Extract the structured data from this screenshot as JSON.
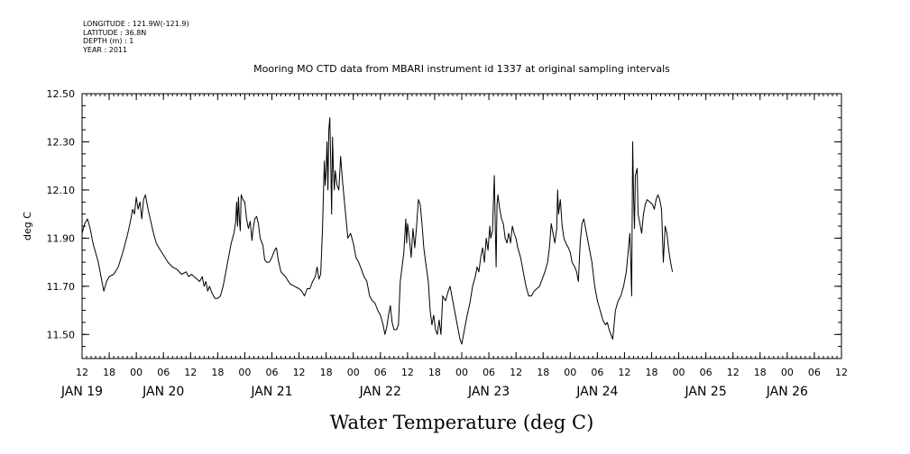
{
  "header": {
    "longitude": "LONGITUDE : 121.9W(-121.9)",
    "latitude": "LATITUDE : 36.8N",
    "depth": "DEPTH (m) : 1",
    "year": "YEAR : 2011"
  },
  "chart_data": {
    "type": "line",
    "title": "Mooring MO CTD data from MBARI instrument id 1337 at original sampling intervals",
    "xlabel": "Water Temperature (deg C)",
    "ylabel": "deg C",
    "x_units": "hours since JAN 19 00:00 (2011)",
    "xlim": [
      12,
      180
    ],
    "ylim": [
      11.4,
      12.5
    ],
    "yticks": [
      11.5,
      11.7,
      11.9,
      12.1,
      12.3,
      12.5
    ],
    "ytick_labels": [
      "11.50",
      "11.70",
      "11.90",
      "12.10",
      "12.30",
      "12.50"
    ],
    "hour_ticks": [
      12,
      18,
      24,
      30,
      36,
      42,
      48,
      54,
      60,
      66,
      72,
      78,
      84,
      90,
      96,
      102,
      108,
      114,
      120,
      126,
      132,
      138,
      144,
      150,
      156,
      162,
      168,
      174,
      180
    ],
    "hour_tick_labels": [
      "12",
      "18",
      "00",
      "06",
      "12",
      "18",
      "00",
      "06",
      "12",
      "18",
      "00",
      "06",
      "12",
      "18",
      "00",
      "06",
      "12",
      "18",
      "00",
      "06",
      "12",
      "18",
      "00",
      "06",
      "12",
      "18",
      "00",
      "06",
      "12"
    ],
    "day_labels": [
      {
        "x": 12,
        "label": "JAN 19"
      },
      {
        "x": 30,
        "label": "JAN 20"
      },
      {
        "x": 54,
        "label": "JAN 21"
      },
      {
        "x": 78,
        "label": "JAN 22"
      },
      {
        "x": 102,
        "label": "JAN 23"
      },
      {
        "x": 126,
        "label": "JAN 24"
      },
      {
        "x": 150,
        "label": "JAN 25"
      },
      {
        "x": 168,
        "label": "JAN 26"
      }
    ],
    "grid": false,
    "series": [
      {
        "color": "#000000",
        "points": [
          [
            12.0,
            11.92
          ],
          [
            12.6,
            11.96
          ],
          [
            13.2,
            11.98
          ],
          [
            13.8,
            11.94
          ],
          [
            14.4,
            11.88
          ],
          [
            15.0,
            11.84
          ],
          [
            15.6,
            11.8
          ],
          [
            16.2,
            11.74
          ],
          [
            16.8,
            11.68
          ],
          [
            17.4,
            11.72
          ],
          [
            18.0,
            11.74
          ],
          [
            19.0,
            11.75
          ],
          [
            20.0,
            11.78
          ],
          [
            21.0,
            11.84
          ],
          [
            22.0,
            11.91
          ],
          [
            22.6,
            11.96
          ],
          [
            23.2,
            12.02
          ],
          [
            23.6,
            12.0
          ],
          [
            24.0,
            12.07
          ],
          [
            24.4,
            12.02
          ],
          [
            24.8,
            12.05
          ],
          [
            25.2,
            11.98
          ],
          [
            25.6,
            12.06
          ],
          [
            26.0,
            12.08
          ],
          [
            26.6,
            12.02
          ],
          [
            27.2,
            11.97
          ],
          [
            27.8,
            11.92
          ],
          [
            28.4,
            11.88
          ],
          [
            29.0,
            11.86
          ],
          [
            30.0,
            11.83
          ],
          [
            31.0,
            11.8
          ],
          [
            32.0,
            11.78
          ],
          [
            33.0,
            11.77
          ],
          [
            34.0,
            11.75
          ],
          [
            35.0,
            11.76
          ],
          [
            35.6,
            11.74
          ],
          [
            36.2,
            11.75
          ],
          [
            36.8,
            11.74
          ],
          [
            37.4,
            11.73
          ],
          [
            38.0,
            11.72
          ],
          [
            38.6,
            11.74
          ],
          [
            39.0,
            11.7
          ],
          [
            39.4,
            11.72
          ],
          [
            39.8,
            11.68
          ],
          [
            40.2,
            11.7
          ],
          [
            40.8,
            11.67
          ],
          [
            41.4,
            11.65
          ],
          [
            42.0,
            11.65
          ],
          [
            42.6,
            11.66
          ],
          [
            43.2,
            11.7
          ],
          [
            43.8,
            11.76
          ],
          [
            44.4,
            11.82
          ],
          [
            45.0,
            11.88
          ],
          [
            45.6,
            11.92
          ],
          [
            46.0,
            11.97
          ],
          [
            46.2,
            12.05
          ],
          [
            46.4,
            11.95
          ],
          [
            46.6,
            12.07
          ],
          [
            46.8,
            11.98
          ],
          [
            47.0,
            11.93
          ],
          [
            47.2,
            12.08
          ],
          [
            47.6,
            12.06
          ],
          [
            48.0,
            12.05
          ],
          [
            48.4,
            11.98
          ],
          [
            48.8,
            11.94
          ],
          [
            49.2,
            11.97
          ],
          [
            49.6,
            11.89
          ],
          [
            49.8,
            11.93
          ],
          [
            50.2,
            11.98
          ],
          [
            50.6,
            11.99
          ],
          [
            51.0,
            11.96
          ],
          [
            51.4,
            11.9
          ],
          [
            52.0,
            11.87
          ],
          [
            52.4,
            11.81
          ],
          [
            52.8,
            11.8
          ],
          [
            53.4,
            11.8
          ],
          [
            54.0,
            11.82
          ],
          [
            54.6,
            11.85
          ],
          [
            55.0,
            11.86
          ],
          [
            55.4,
            11.81
          ],
          [
            56.0,
            11.76
          ],
          [
            57.0,
            11.74
          ],
          [
            58.0,
            11.71
          ],
          [
            59.0,
            11.7
          ],
          [
            60.0,
            11.69
          ],
          [
            60.6,
            11.68
          ],
          [
            61.2,
            11.66
          ],
          [
            61.8,
            11.69
          ],
          [
            62.4,
            11.69
          ],
          [
            63.0,
            11.72
          ],
          [
            63.6,
            11.74
          ],
          [
            64.0,
            11.78
          ],
          [
            64.4,
            11.73
          ],
          [
            64.8,
            11.75
          ],
          [
            65.2,
            11.94
          ],
          [
            65.6,
            12.22
          ],
          [
            65.8,
            12.12
          ],
          [
            66.0,
            12.18
          ],
          [
            66.2,
            12.3
          ],
          [
            66.4,
            12.1
          ],
          [
            66.6,
            12.35
          ],
          [
            66.8,
            12.4
          ],
          [
            67.0,
            12.22
          ],
          [
            67.2,
            12.0
          ],
          [
            67.4,
            12.32
          ],
          [
            67.6,
            12.18
          ],
          [
            67.8,
            12.1
          ],
          [
            68.0,
            12.18
          ],
          [
            68.4,
            12.12
          ],
          [
            68.8,
            12.1
          ],
          [
            69.2,
            12.24
          ],
          [
            69.6,
            12.14
          ],
          [
            70.0,
            12.06
          ],
          [
            70.4,
            11.98
          ],
          [
            70.8,
            11.9
          ],
          [
            71.4,
            11.92
          ],
          [
            72.0,
            11.88
          ],
          [
            72.6,
            11.82
          ],
          [
            73.2,
            11.8
          ],
          [
            73.8,
            11.77
          ],
          [
            74.4,
            11.74
          ],
          [
            75.0,
            11.72
          ],
          [
            75.6,
            11.66
          ],
          [
            76.2,
            11.64
          ],
          [
            76.8,
            11.63
          ],
          [
            77.4,
            11.6
          ],
          [
            78.0,
            11.58
          ],
          [
            78.6,
            11.54
          ],
          [
            79.0,
            11.5
          ],
          [
            79.4,
            11.53
          ],
          [
            79.8,
            11.58
          ],
          [
            80.2,
            11.62
          ],
          [
            80.6,
            11.55
          ],
          [
            81.0,
            11.52
          ],
          [
            81.6,
            11.52
          ],
          [
            82.0,
            11.54
          ],
          [
            82.4,
            11.72
          ],
          [
            82.8,
            11.78
          ],
          [
            83.2,
            11.84
          ],
          [
            83.6,
            11.98
          ],
          [
            83.8,
            11.88
          ],
          [
            84.0,
            11.96
          ],
          [
            84.4,
            11.9
          ],
          [
            84.8,
            11.82
          ],
          [
            85.2,
            11.94
          ],
          [
            85.6,
            11.86
          ],
          [
            86.0,
            11.95
          ],
          [
            86.4,
            12.06
          ],
          [
            86.8,
            12.04
          ],
          [
            87.2,
            11.96
          ],
          [
            87.6,
            11.86
          ],
          [
            88.0,
            11.8
          ],
          [
            88.6,
            11.72
          ],
          [
            89.0,
            11.6
          ],
          [
            89.4,
            11.54
          ],
          [
            89.8,
            11.58
          ],
          [
            90.2,
            11.52
          ],
          [
            90.6,
            11.5
          ],
          [
            91.0,
            11.56
          ],
          [
            91.4,
            11.5
          ],
          [
            91.8,
            11.66
          ],
          [
            92.4,
            11.64
          ],
          [
            93.0,
            11.68
          ],
          [
            93.4,
            11.7
          ],
          [
            93.8,
            11.66
          ],
          [
            94.4,
            11.6
          ],
          [
            95.0,
            11.54
          ],
          [
            95.6,
            11.48
          ],
          [
            96.0,
            11.46
          ],
          [
            96.6,
            11.52
          ],
          [
            97.2,
            11.58
          ],
          [
            97.8,
            11.63
          ],
          [
            98.4,
            11.7
          ],
          [
            99.0,
            11.74
          ],
          [
            99.4,
            11.78
          ],
          [
            99.8,
            11.76
          ],
          [
            100.2,
            11.82
          ],
          [
            100.6,
            11.86
          ],
          [
            101.0,
            11.8
          ],
          [
            101.4,
            11.9
          ],
          [
            101.8,
            11.85
          ],
          [
            102.2,
            11.95
          ],
          [
            102.4,
            11.9
          ],
          [
            102.8,
            11.93
          ],
          [
            103.0,
            12.05
          ],
          [
            103.2,
            12.16
          ],
          [
            103.4,
            11.96
          ],
          [
            103.6,
            11.78
          ],
          [
            103.8,
            12.04
          ],
          [
            104.0,
            12.08
          ],
          [
            104.4,
            12.02
          ],
          [
            104.8,
            11.98
          ],
          [
            105.2,
            11.96
          ],
          [
            105.6,
            11.9
          ],
          [
            106.0,
            11.88
          ],
          [
            106.4,
            11.92
          ],
          [
            106.8,
            11.88
          ],
          [
            107.2,
            11.95
          ],
          [
            107.6,
            11.92
          ],
          [
            108.0,
            11.9
          ],
          [
            108.4,
            11.86
          ],
          [
            109.0,
            11.82
          ],
          [
            109.6,
            11.76
          ],
          [
            110.2,
            11.7
          ],
          [
            110.8,
            11.66
          ],
          [
            111.4,
            11.66
          ],
          [
            112.0,
            11.68
          ],
          [
            112.6,
            11.69
          ],
          [
            113.2,
            11.7
          ],
          [
            113.8,
            11.73
          ],
          [
            114.4,
            11.76
          ],
          [
            115.0,
            11.8
          ],
          [
            115.4,
            11.86
          ],
          [
            115.8,
            11.96
          ],
          [
            116.2,
            11.92
          ],
          [
            116.6,
            11.88
          ],
          [
            117.0,
            11.94
          ],
          [
            117.2,
            12.1
          ],
          [
            117.4,
            12.0
          ],
          [
            117.8,
            12.06
          ],
          [
            118.2,
            11.95
          ],
          [
            118.6,
            11.9
          ],
          [
            119.0,
            11.88
          ],
          [
            119.6,
            11.86
          ],
          [
            120.0,
            11.84
          ],
          [
            120.4,
            11.8
          ],
          [
            121.0,
            11.78
          ],
          [
            121.4,
            11.76
          ],
          [
            121.8,
            11.72
          ],
          [
            122.2,
            11.88
          ],
          [
            122.6,
            11.96
          ],
          [
            123.0,
            11.98
          ],
          [
            123.4,
            11.94
          ],
          [
            123.8,
            11.9
          ],
          [
            124.2,
            11.86
          ],
          [
            124.8,
            11.8
          ],
          [
            125.4,
            11.7
          ],
          [
            126.0,
            11.64
          ],
          [
            126.6,
            11.6
          ],
          [
            127.2,
            11.56
          ],
          [
            127.8,
            11.54
          ],
          [
            128.2,
            11.55
          ],
          [
            128.6,
            11.52
          ],
          [
            129.0,
            11.5
          ],
          [
            129.4,
            11.48
          ],
          [
            130.0,
            11.6
          ],
          [
            130.6,
            11.64
          ],
          [
            131.2,
            11.66
          ],
          [
            131.8,
            11.7
          ],
          [
            132.4,
            11.76
          ],
          [
            132.8,
            11.84
          ],
          [
            133.2,
            11.92
          ],
          [
            133.4,
            11.8
          ],
          [
            133.6,
            11.66
          ],
          [
            133.8,
            12.3
          ],
          [
            134.0,
            12.08
          ],
          [
            134.2,
            11.94
          ],
          [
            134.4,
            12.16
          ],
          [
            134.8,
            12.19
          ],
          [
            135.0,
            12.0
          ],
          [
            135.4,
            11.96
          ],
          [
            135.8,
            11.92
          ],
          [
            136.2,
            12.0
          ],
          [
            136.6,
            12.04
          ],
          [
            137.0,
            12.06
          ],
          [
            137.6,
            12.05
          ],
          [
            138.2,
            12.04
          ],
          [
            138.6,
            12.02
          ],
          [
            139.0,
            12.06
          ],
          [
            139.4,
            12.08
          ],
          [
            139.8,
            12.06
          ],
          [
            140.2,
            12.02
          ],
          [
            140.6,
            11.8
          ],
          [
            141.0,
            11.95
          ],
          [
            141.4,
            11.92
          ],
          [
            141.8,
            11.85
          ],
          [
            142.2,
            11.8
          ],
          [
            142.6,
            11.76
          ]
        ]
      }
    ]
  }
}
